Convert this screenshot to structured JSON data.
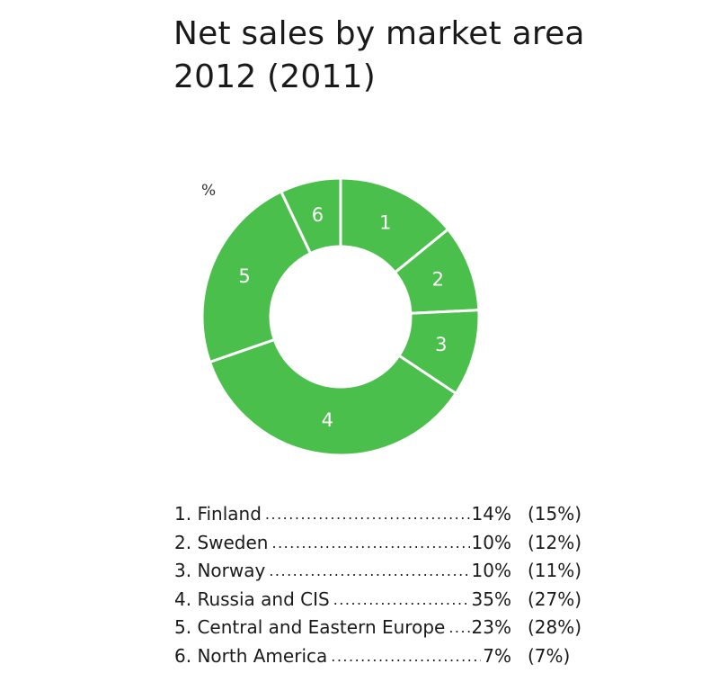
{
  "chart_data": {
    "type": "pie",
    "title_line1": "Net sales by market area",
    "title_line2": "2012 (2011)",
    "unit_label": "%",
    "colors": {
      "slice": "#4bbf4b",
      "separator": "#ffffff",
      "slice_label": "#ffffff"
    },
    "slices": [
      {
        "number": "1",
        "label": "Finland",
        "value": 14,
        "value_text": "14%",
        "prev_text": "(15%)"
      },
      {
        "number": "2",
        "label": "Sweden",
        "value": 10,
        "value_text": "10%",
        "prev_text": "(12%)"
      },
      {
        "number": "3",
        "label": "Norway",
        "value": 10,
        "value_text": "10%",
        "prev_text": "(11%)"
      },
      {
        "number": "4",
        "label": "Russia and CIS",
        "value": 35,
        "value_text": "35%",
        "prev_text": "(27%)"
      },
      {
        "number": "5",
        "label": "Central and Eastern Europe",
        "value": 23,
        "value_text": "23%",
        "prev_text": "(28%)"
      },
      {
        "number": "6",
        "label": "North America",
        "value": 7,
        "value_text": "7%",
        "prev_text": "(7%)"
      }
    ]
  }
}
